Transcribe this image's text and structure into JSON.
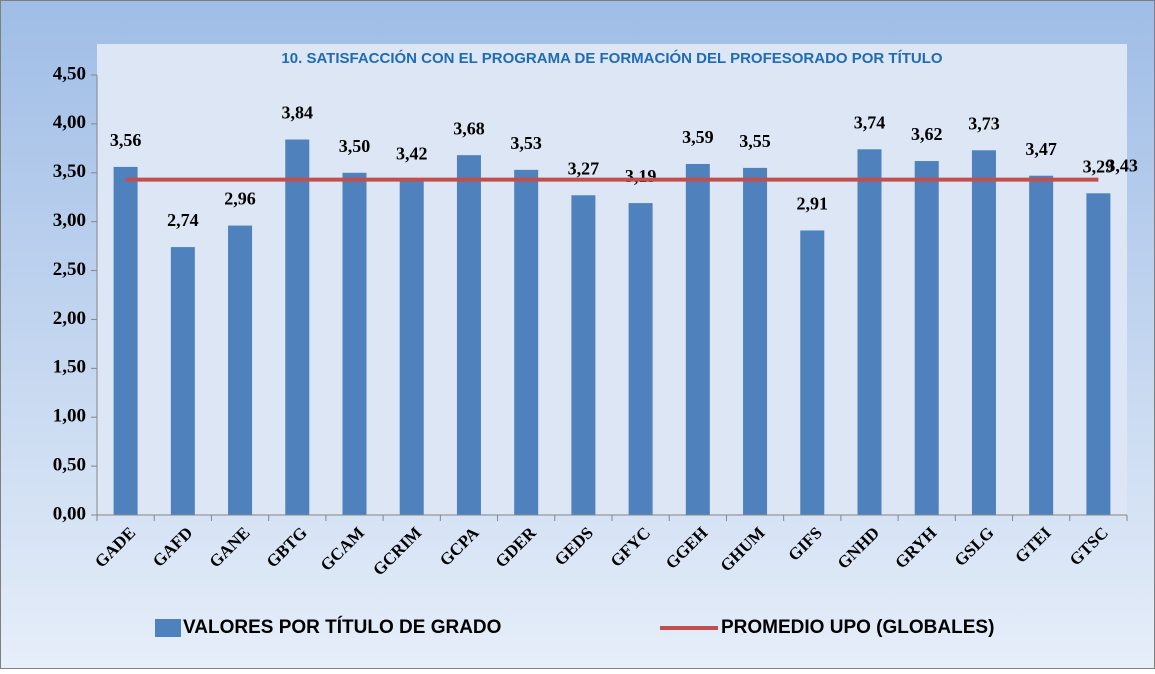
{
  "chart_data": {
    "type": "bar",
    "title": "10. SATISFACCIÓN CON EL PROGRAMA DE FORMACIÓN DEL PROFESORADO POR TÍTULO",
    "categories": [
      "GADE",
      "GAFD",
      "GANE",
      "GBTG",
      "GCAM",
      "GCRIM",
      "GCPA",
      "GDER",
      "GEDS",
      "GFYC",
      "GGEH",
      "GHUM",
      "GIFS",
      "GNHD",
      "GRYH",
      "GSLG",
      "GTEI",
      "GTSC"
    ],
    "series": [
      {
        "name": "VALORES POR TÍTULO DE GRADO",
        "type": "bar",
        "color": "#4f81bd",
        "values": [
          3.56,
          2.74,
          2.96,
          3.84,
          3.5,
          3.42,
          3.68,
          3.53,
          3.27,
          3.19,
          3.59,
          3.55,
          2.91,
          3.74,
          3.62,
          3.73,
          3.47,
          3.29
        ],
        "value_labels": [
          "3,56",
          "2,74",
          "2,96",
          "3,84",
          "3,50",
          "3,42",
          "3,68",
          "3,53",
          "3,27",
          "3,19",
          "3,59",
          "3,55",
          "2,91",
          "3,74",
          "3,62",
          "3,73",
          "3,47",
          "3,29"
        ]
      },
      {
        "name": "PROMEDIO UPO (GLOBALES)",
        "type": "line",
        "color": "#c0504d",
        "values": [
          3.43,
          3.43,
          3.43,
          3.43,
          3.43,
          3.43,
          3.43,
          3.43,
          3.43,
          3.43,
          3.43,
          3.43,
          3.43,
          3.43,
          3.43,
          3.43,
          3.43,
          3.43
        ],
        "value_labels": [
          null,
          null,
          null,
          null,
          null,
          null,
          null,
          null,
          null,
          null,
          null,
          null,
          null,
          null,
          null,
          null,
          null,
          "3,43"
        ]
      }
    ],
    "ylim": [
      0,
      4.5
    ],
    "yticks": [
      {
        "value": 0,
        "label": "0,00"
      },
      {
        "value": 0.5,
        "label": "0,50"
      },
      {
        "value": 1,
        "label": "1,00"
      },
      {
        "value": 1.5,
        "label": "1,50"
      },
      {
        "value": 2,
        "label": "2,00"
      },
      {
        "value": 2.5,
        "label": "2,50"
      },
      {
        "value": 3,
        "label": "3,00"
      },
      {
        "value": 3.5,
        "label": "3,50"
      },
      {
        "value": 4,
        "label": "4,00"
      },
      {
        "value": 4.5,
        "label": "4,50"
      }
    ],
    "grid": false,
    "legend": "bottom"
  }
}
